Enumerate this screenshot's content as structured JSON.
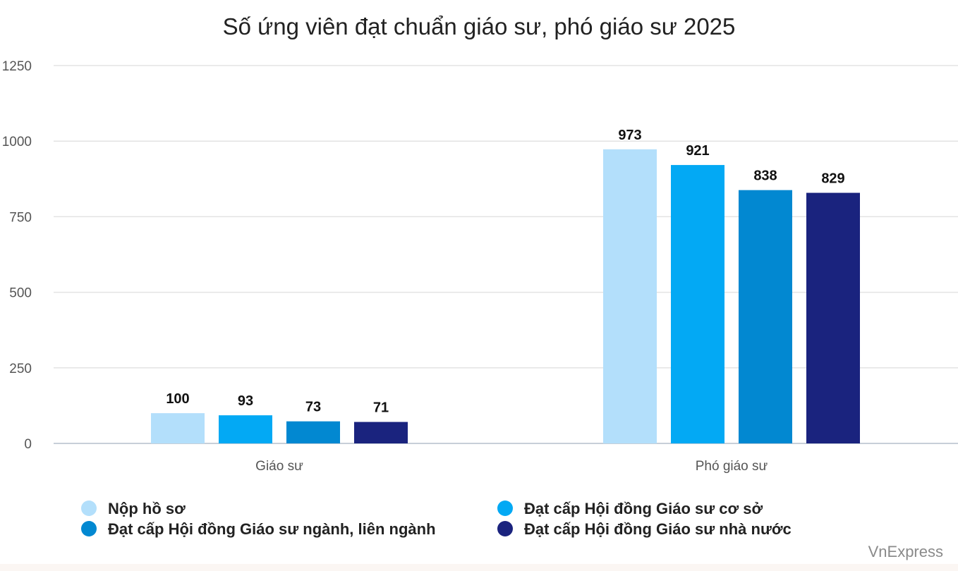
{
  "chart_data": {
    "type": "bar",
    "title": "Số ứng viên đạt chuẩn giáo sư, phó giáo sư 2025",
    "categories": [
      "Giáo sư",
      "Phó giáo sư"
    ],
    "series": [
      {
        "name": "Nộp hồ sơ",
        "values": [
          100,
          973
        ],
        "labels": [
          "100",
          "973"
        ],
        "color": "#b3dffb"
      },
      {
        "name": "Đạt cấp Hội đồng Giáo sư cơ sở",
        "values": [
          93,
          921
        ],
        "labels": [
          "93",
          "921"
        ],
        "color": "#03a9f4"
      },
      {
        "name": "Đạt cấp Hội đồng Giáo sư ngành, liên ngành",
        "values": [
          73,
          838
        ],
        "labels": [
          "73",
          "838"
        ],
        "color": "#0288d1"
      },
      {
        "name": "Đạt cấp Hội đồng Giáo sư nhà nước",
        "values": [
          71,
          829
        ],
        "labels": [
          "71",
          "829"
        ],
        "color": "#1a237e"
      }
    ],
    "ylim": [
      0,
      1250
    ],
    "yticks": [
      "0",
      "250",
      "500",
      "750",
      "1000",
      "1250"
    ],
    "xlabel": "",
    "ylabel": "",
    "grid": true,
    "legend_position": "bottom"
  },
  "source": "VnExpress"
}
